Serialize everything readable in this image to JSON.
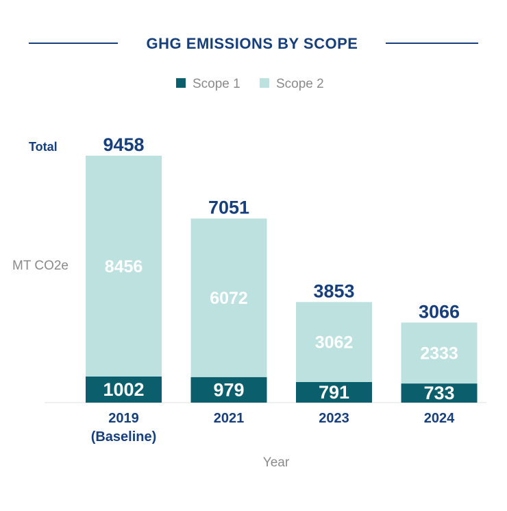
{
  "chart_data": {
    "type": "bar",
    "stacked": true,
    "title": "GHG EMISSIONS BY SCOPE",
    "xlabel": "Year",
    "ylabel": "MT CO2e",
    "total_label": "Total",
    "categories": [
      "2019",
      "2021",
      "2023",
      "2024"
    ],
    "category_sublabels": [
      "(Baseline)",
      "",
      "",
      ""
    ],
    "series": [
      {
        "name": "Scope 1",
        "color": "#0b5f6d",
        "values": [
          1002,
          979,
          791,
          733
        ]
      },
      {
        "name": "Scope 2",
        "color": "#bde1df",
        "values": [
          8456,
          6072,
          3062,
          2333
        ]
      }
    ],
    "totals": [
      9458,
      7051,
      3853,
      3066
    ],
    "ylim": [
      0,
      9458
    ],
    "grid": false,
    "legend_position": "top-center",
    "colors": {
      "title": "#163f7c",
      "axis_text": "#8a8a8a",
      "segment_label": "#ffffff"
    }
  }
}
